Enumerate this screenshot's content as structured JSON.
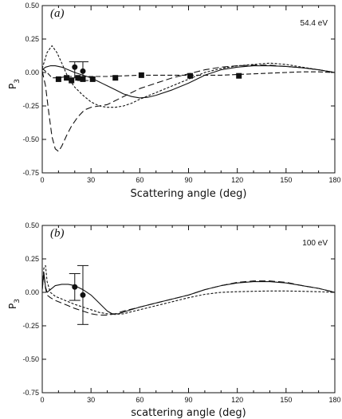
{
  "chart_data": [
    {
      "type": "line",
      "panel_label": "(a)",
      "energy_label": "54.4  eV",
      "xlabel": "Scattering angle (deg)",
      "ylabel": "P",
      "ylabel_sub": "3",
      "xlim": [
        0,
        180
      ],
      "ylim": [
        -0.75,
        0.5
      ],
      "xticks": [
        0,
        30,
        60,
        90,
        120,
        150,
        180
      ],
      "xtick_labels": [
        "0",
        "30",
        "60",
        "90",
        "120",
        "150",
        "180"
      ],
      "yticks": [
        0.5,
        0.25,
        0.0,
        -0.25,
        -0.5,
        -0.75
      ],
      "ytick_labels": [
        "0.50",
        "0.25",
        "0.00",
        "-0.25",
        "-0.50",
        "-0.75"
      ],
      "series": [
        {
          "style": "solid",
          "points": [
            [
              0,
              0.02
            ],
            [
              2,
              0.04
            ],
            [
              5,
              0.05
            ],
            [
              8,
              0.05
            ],
            [
              12,
              0.04
            ],
            [
              16,
              0.02
            ],
            [
              20,
              0.0
            ],
            [
              25,
              -0.02
            ],
            [
              30,
              -0.04
            ],
            [
              35,
              -0.07
            ],
            [
              40,
              -0.1
            ],
            [
              45,
              -0.13
            ],
            [
              50,
              -0.16
            ],
            [
              55,
              -0.18
            ],
            [
              60,
              -0.19
            ],
            [
              65,
              -0.185
            ],
            [
              70,
              -0.17
            ],
            [
              80,
              -0.13
            ],
            [
              90,
              -0.08
            ],
            [
              100,
              -0.02
            ],
            [
              110,
              0.02
            ],
            [
              120,
              0.04
            ],
            [
              130,
              0.05
            ],
            [
              140,
              0.05
            ],
            [
              150,
              0.045
            ],
            [
              160,
              0.035
            ],
            [
              170,
              0.02
            ],
            [
              180,
              0.0
            ]
          ]
        },
        {
          "style": "short-dashed",
          "points": [
            [
              0,
              0.03
            ],
            [
              3,
              0.15
            ],
            [
              6,
              0.2
            ],
            [
              9,
              0.15
            ],
            [
              12,
              0.07
            ],
            [
              16,
              -0.04
            ],
            [
              20,
              -0.11
            ],
            [
              25,
              -0.17
            ],
            [
              30,
              -0.22
            ],
            [
              35,
              -0.25
            ],
            [
              40,
              -0.26
            ],
            [
              45,
              -0.26
            ],
            [
              50,
              -0.25
            ],
            [
              55,
              -0.23
            ],
            [
              60,
              -0.2
            ],
            [
              70,
              -0.15
            ],
            [
              80,
              -0.1
            ],
            [
              90,
              -0.05
            ],
            [
              100,
              0.0
            ],
            [
              110,
              0.03
            ],
            [
              120,
              0.05
            ],
            [
              130,
              0.06
            ],
            [
              140,
              0.07
            ],
            [
              150,
              0.06
            ],
            [
              160,
              0.04
            ],
            [
              170,
              0.02
            ],
            [
              180,
              0.0
            ]
          ]
        },
        {
          "style": "long-dashed",
          "points": [
            [
              0,
              0.01
            ],
            [
              2,
              -0.1
            ],
            [
              4,
              -0.3
            ],
            [
              6,
              -0.48
            ],
            [
              8,
              -0.57
            ],
            [
              10,
              -0.59
            ],
            [
              12,
              -0.55
            ],
            [
              15,
              -0.47
            ],
            [
              18,
              -0.4
            ],
            [
              22,
              -0.33
            ],
            [
              26,
              -0.28
            ],
            [
              30,
              -0.26
            ],
            [
              35,
              -0.25
            ],
            [
              40,
              -0.24
            ],
            [
              45,
              -0.21
            ],
            [
              50,
              -0.18
            ],
            [
              55,
              -0.15
            ],
            [
              60,
              -0.12
            ],
            [
              70,
              -0.08
            ],
            [
              80,
              -0.04
            ],
            [
              90,
              -0.01
            ],
            [
              100,
              0.02
            ],
            [
              110,
              0.04
            ],
            [
              120,
              0.05
            ],
            [
              130,
              0.055
            ],
            [
              140,
              0.055
            ],
            [
              150,
              0.045
            ],
            [
              160,
              0.035
            ],
            [
              170,
              0.02
            ],
            [
              180,
              0.0
            ]
          ]
        },
        {
          "style": "medium-dashed",
          "points": [
            [
              0,
              0.03
            ],
            [
              3,
              0.0
            ],
            [
              6,
              -0.04
            ],
            [
              10,
              -0.04
            ],
            [
              15,
              -0.03
            ],
            [
              20,
              -0.03
            ],
            [
              30,
              -0.03
            ],
            [
              40,
              -0.03
            ],
            [
              50,
              -0.025
            ],
            [
              60,
              -0.02
            ],
            [
              70,
              -0.02
            ],
            [
              80,
              -0.02
            ],
            [
              90,
              -0.02
            ],
            [
              100,
              -0.02
            ],
            [
              110,
              -0.02
            ],
            [
              120,
              -0.015
            ],
            [
              130,
              -0.01
            ],
            [
              140,
              -0.005
            ],
            [
              150,
              0.0
            ],
            [
              160,
              0.005
            ],
            [
              170,
              0.005
            ],
            [
              180,
              0.0
            ]
          ]
        }
      ],
      "squares": [
        [
          10,
          -0.05
        ],
        [
          15,
          -0.04
        ],
        [
          18,
          -0.06
        ],
        [
          22,
          -0.04
        ],
        [
          25,
          -0.05
        ],
        [
          31,
          -0.05
        ],
        [
          45,
          -0.04
        ],
        [
          61,
          -0.02
        ],
        [
          91,
          -0.025
        ],
        [
          121,
          -0.025
        ]
      ],
      "circles": [
        {
          "x": 20,
          "y": 0.04,
          "err_low": -0.04,
          "err_high": 0.08
        },
        {
          "x": 25,
          "y": 0.01,
          "err_low": -0.06,
          "err_high": 0.08
        }
      ]
    },
    {
      "type": "line",
      "panel_label": "(b)",
      "energy_label": "100  eV",
      "xlabel": "scattering angle (deg)",
      "ylabel": "P",
      "ylabel_sub": "3",
      "xlim": [
        0,
        180
      ],
      "ylim": [
        -0.75,
        0.5
      ],
      "xticks": [
        0,
        30,
        60,
        90,
        120,
        150,
        180
      ],
      "xtick_labels": [
        "0",
        "30",
        "60",
        "90",
        "120",
        "150",
        "180"
      ],
      "yticks": [
        0.5,
        0.25,
        0.0,
        -0.25,
        -0.5,
        -0.75
      ],
      "ytick_labels": [
        "0.50",
        "0.25",
        "0.00",
        "-0.25",
        "-0.50",
        "-0.75"
      ],
      "series": [
        {
          "style": "solid",
          "points": [
            [
              0,
              0.03
            ],
            [
              1,
              0.15
            ],
            [
              2,
              0.04
            ],
            [
              3,
              0.0
            ],
            [
              5,
              0.02
            ],
            [
              8,
              0.05
            ],
            [
              12,
              0.06
            ],
            [
              16,
              0.06
            ],
            [
              20,
              0.05
            ],
            [
              25,
              0.02
            ],
            [
              30,
              -0.02
            ],
            [
              35,
              -0.08
            ],
            [
              40,
              -0.14
            ],
            [
              43,
              -0.16
            ],
            [
              47,
              -0.16
            ],
            [
              52,
              -0.14
            ],
            [
              60,
              -0.11
            ],
            [
              70,
              -0.08
            ],
            [
              80,
              -0.05
            ],
            [
              90,
              -0.02
            ],
            [
              100,
              0.02
            ],
            [
              110,
              0.05
            ],
            [
              120,
              0.07
            ],
            [
              130,
              0.08
            ],
            [
              140,
              0.08
            ],
            [
              150,
              0.07
            ],
            [
              160,
              0.05
            ],
            [
              170,
              0.03
            ],
            [
              180,
              0.0
            ]
          ]
        },
        {
          "style": "short-dashed",
          "points": [
            [
              0,
              0.02
            ],
            [
              1,
              0.18
            ],
            [
              2,
              0.2
            ],
            [
              3,
              0.08
            ],
            [
              5,
              0.0
            ],
            [
              8,
              -0.03
            ],
            [
              12,
              -0.05
            ],
            [
              16,
              -0.07
            ],
            [
              20,
              -0.09
            ],
            [
              25,
              -0.11
            ],
            [
              30,
              -0.13
            ],
            [
              35,
              -0.15
            ],
            [
              40,
              -0.16
            ],
            [
              45,
              -0.165
            ],
            [
              50,
              -0.16
            ],
            [
              60,
              -0.13
            ],
            [
              70,
              -0.1
            ],
            [
              80,
              -0.07
            ],
            [
              90,
              -0.04
            ],
            [
              100,
              -0.015
            ],
            [
              110,
              0.0
            ],
            [
              120,
              0.005
            ],
            [
              130,
              0.008
            ],
            [
              140,
              0.01
            ],
            [
              150,
              0.01
            ],
            [
              160,
              0.008
            ],
            [
              170,
              0.005
            ],
            [
              180,
              0.0
            ]
          ]
        },
        {
          "style": "long-dashed",
          "points": [
            [
              0,
              0.02
            ],
            [
              1,
              0.14
            ],
            [
              2,
              0.03
            ],
            [
              3,
              -0.02
            ],
            [
              5,
              -0.04
            ],
            [
              8,
              -0.06
            ],
            [
              12,
              -0.08
            ],
            [
              16,
              -0.1
            ],
            [
              20,
              -0.12
            ],
            [
              25,
              -0.14
            ],
            [
              30,
              -0.16
            ],
            [
              35,
              -0.17
            ],
            [
              40,
              -0.17
            ],
            [
              45,
              -0.16
            ],
            [
              50,
              -0.14
            ],
            [
              60,
              -0.11
            ],
            [
              70,
              -0.08
            ],
            [
              80,
              -0.05
            ],
            [
              90,
              -0.02
            ],
            [
              100,
              0.02
            ],
            [
              110,
              0.05
            ],
            [
              120,
              0.075
            ],
            [
              130,
              0.085
            ],
            [
              140,
              0.085
            ],
            [
              150,
              0.075
            ],
            [
              160,
              0.05
            ],
            [
              170,
              0.03
            ],
            [
              180,
              0.0
            ]
          ]
        }
      ],
      "squares": [],
      "circles": [
        {
          "x": 20,
          "y": 0.04,
          "err_low": -0.06,
          "err_high": 0.14
        },
        {
          "x": 25,
          "y": -0.02,
          "err_low": -0.24,
          "err_high": 0.2
        }
      ]
    }
  ]
}
